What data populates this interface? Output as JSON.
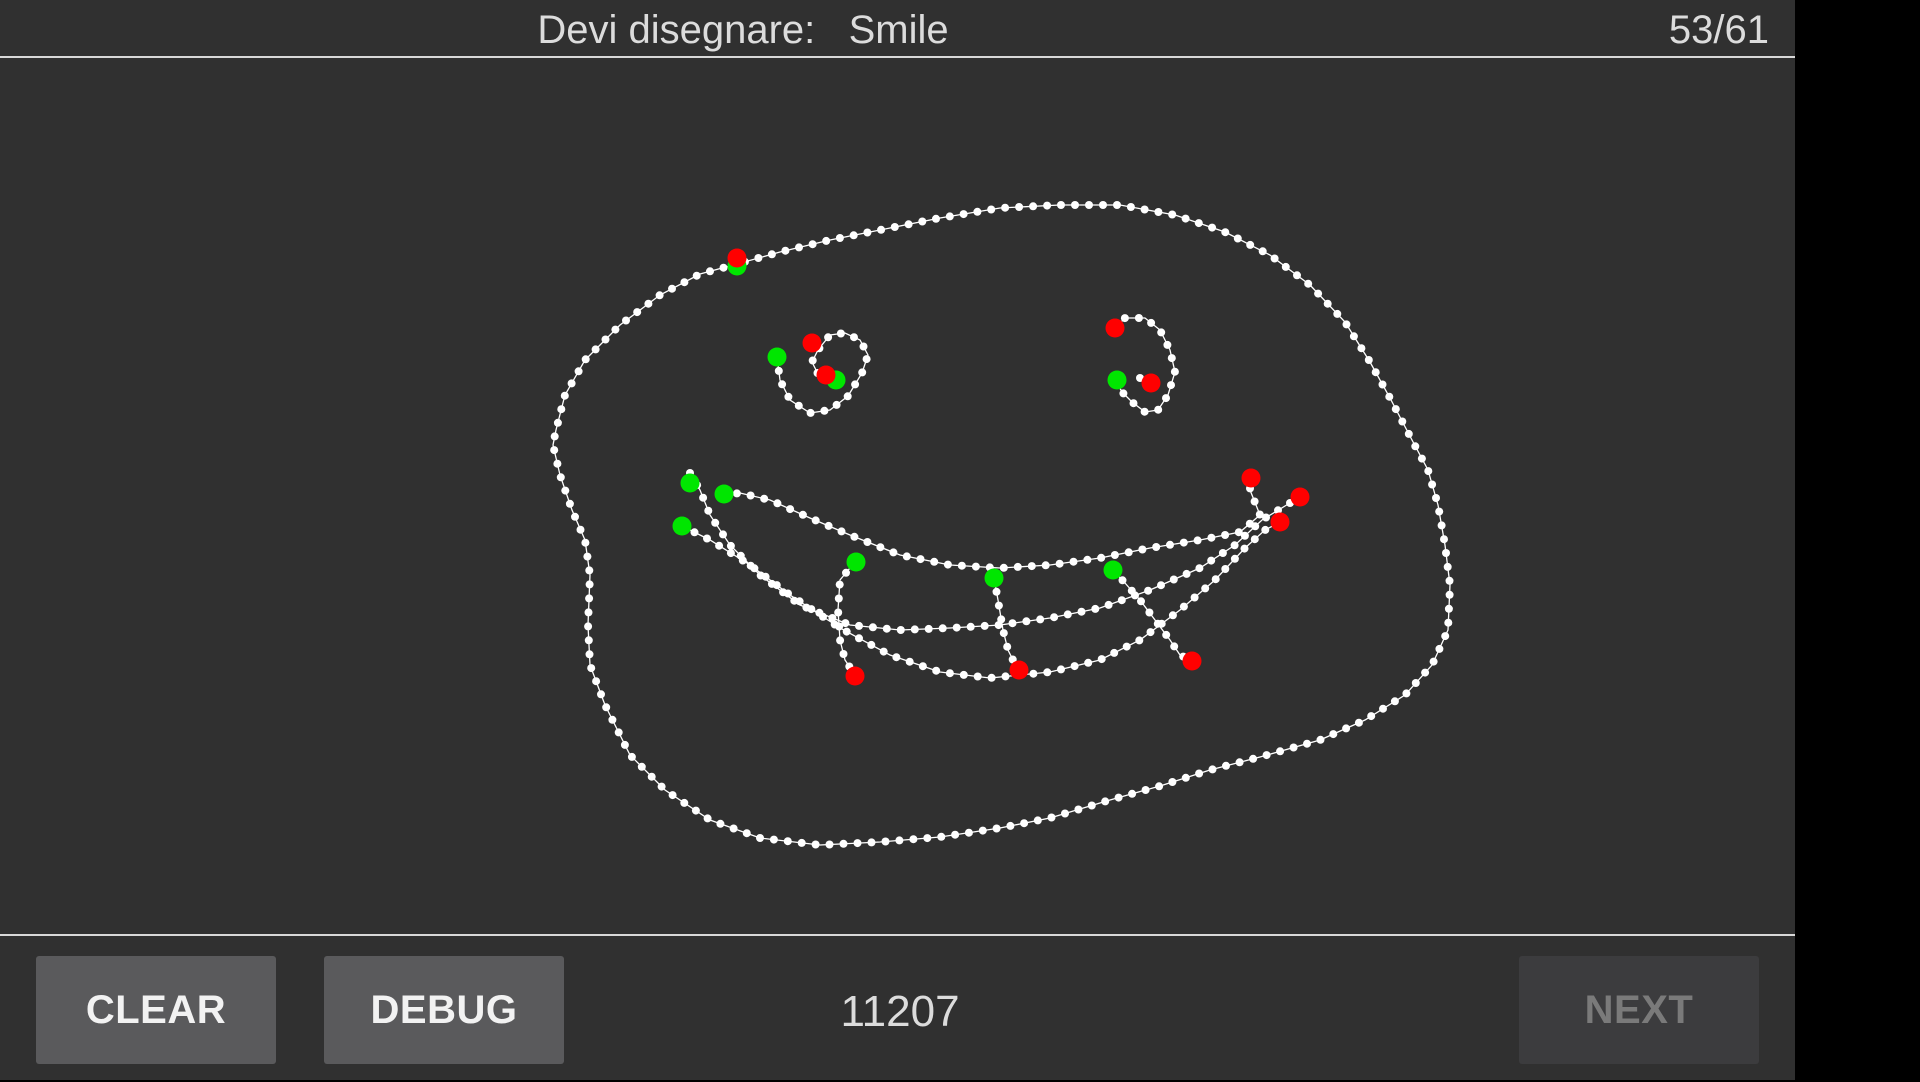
{
  "header": {
    "prompt_label": "Devi disegnare:",
    "target_word": "Smile",
    "progress": "53/61"
  },
  "footer": {
    "clear_label": "CLEAR",
    "debug_label": "DEBUG",
    "score": "11207",
    "next_label": "NEXT"
  },
  "colors": {
    "background": "#303030",
    "stroke": "#ffffff",
    "stroke_start": "#00e600",
    "stroke_end": "#ff0000",
    "button": "#5a5a5c",
    "button_disabled": "#3c3c3e"
  },
  "icons": {
    "stroke_start_marker": "green-dot-icon",
    "stroke_end_marker": "red-dot-icon"
  }
}
